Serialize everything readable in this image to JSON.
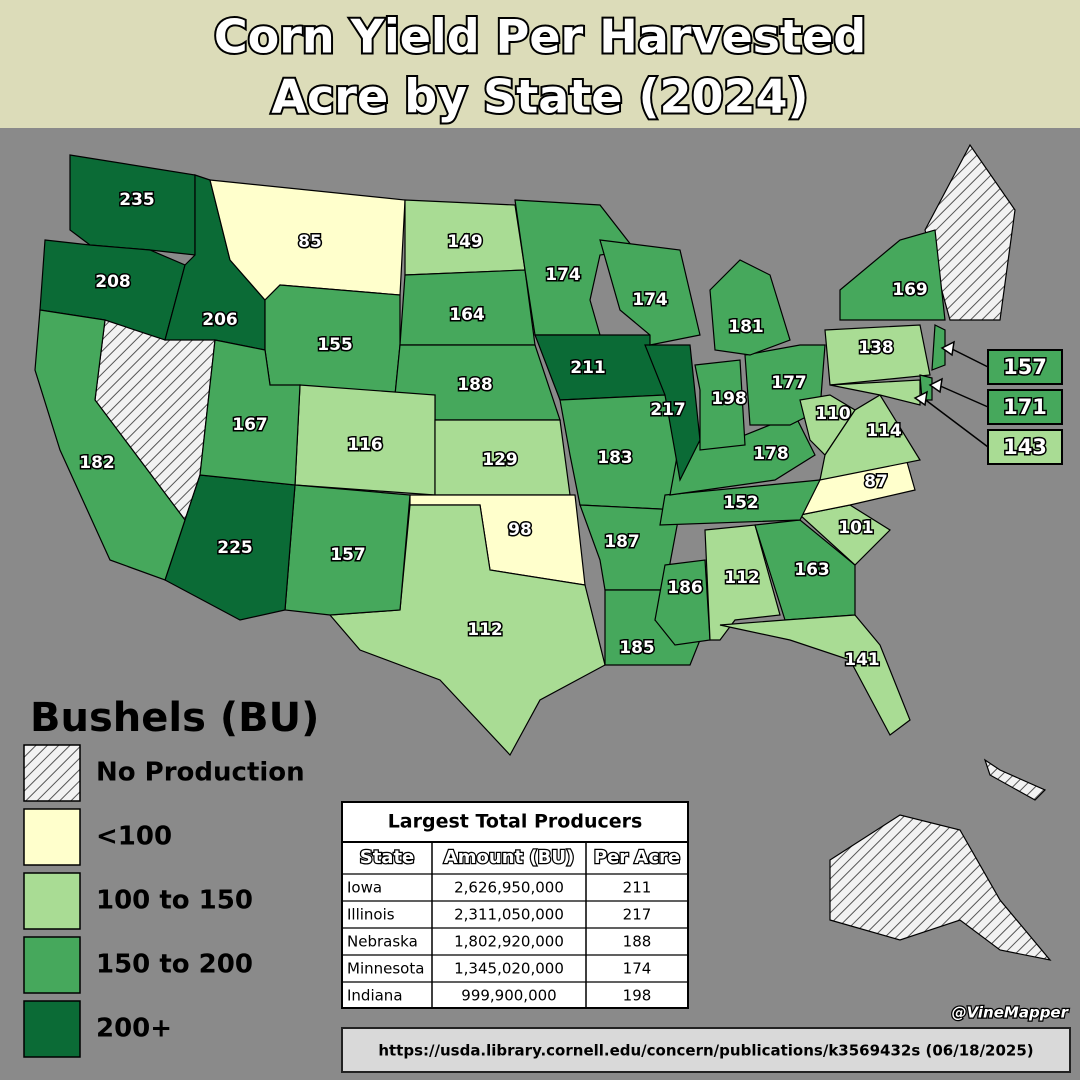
{
  "title": [
    "Corn Yield Per Harvested",
    "Acre by State (2024)"
  ],
  "states": [
    {
      "value": 235,
      "color": "#0b6b36"
    },
    {
      "value": 208,
      "color": "#0b6b36"
    },
    {
      "value": 206,
      "color": "#0b6b36"
    },
    {
      "value": 85,
      "color": "#ffffcc"
    },
    {
      "value": 155,
      "color": "#46a85c"
    },
    {
      "value": 149,
      "color": "#a9dc94"
    },
    {
      "value": 164,
      "color": "#46a85c"
    },
    {
      "value": 188,
      "color": "#46a85c"
    },
    {
      "value": 116,
      "color": "#a9dc94"
    },
    {
      "value": 129,
      "color": "#a9dc94"
    },
    {
      "value": 98,
      "color": "#ffffcc"
    },
    {
      "value": 112,
      "color": "#a9dc94"
    },
    {
      "value": 157,
      "color": "#46a85c"
    },
    {
      "value": 225,
      "color": "#0b6b36"
    },
    {
      "value": 167,
      "color": "#46a85c"
    },
    {
      "value": 182,
      "color": "#46a85c"
    },
    {
      "value": 174,
      "color": "#46a85c"
    },
    {
      "value": 211,
      "color": "#0b6b36"
    },
    {
      "value": 183,
      "color": "#46a85c"
    },
    {
      "value": 187,
      "color": "#46a85c"
    },
    {
      "value": 185,
      "color": "#46a85c"
    },
    {
      "value": 186,
      "color": "#46a85c"
    },
    {
      "value": 112,
      "color": "#a9dc94"
    },
    {
      "value": 163,
      "color": "#46a85c"
    },
    {
      "value": 141,
      "color": "#a9dc94"
    },
    {
      "value": 101,
      "color": "#a9dc94"
    },
    {
      "value": 87,
      "color": "#ffffcc"
    },
    {
      "value": 152,
      "color": "#46a85c"
    },
    {
      "value": 178,
      "color": "#46a85c"
    },
    {
      "value": 217,
      "color": "#0b6b36"
    },
    {
      "value": 198,
      "color": "#46a85c"
    },
    {
      "value": 177,
      "color": "#46a85c"
    },
    {
      "value": 181,
      "color": "#46a85c"
    },
    {
      "value": 174,
      "color": "#46a85c"
    },
    {
      "value": 110,
      "color": "#a9dc94"
    },
    {
      "value": 114,
      "color": "#a9dc94"
    },
    {
      "value": 138,
      "color": "#a9dc94"
    },
    {
      "value": 169,
      "color": "#46a85c"
    },
    {
      "value": 157,
      "color": "#46a85c"
    },
    {
      "value": 171,
      "color": "#46a85c"
    },
    {
      "value": 143,
      "color": "#a9dc94"
    }
  ],
  "legend": {
    "title": "Bushels (BU)",
    "items": [
      {
        "label": "No Production",
        "pattern": "hatch"
      },
      {
        "label": "<100",
        "color": "#ffffcc"
      },
      {
        "label": "100 to 150",
        "color": "#a9dc94"
      },
      {
        "label": "150 to 200",
        "color": "#46a85c"
      },
      {
        "label": "200+",
        "color": "#0b6b36"
      }
    ]
  },
  "table": {
    "title": "Largest Total Producers",
    "columns": [
      "State",
      "Amount (BU)",
      "Per Acre"
    ],
    "rows": [
      [
        "Iowa",
        "2,626,950,000",
        "211"
      ],
      [
        "Illinois",
        "2,311,050,000",
        "217"
      ],
      [
        "Nebraska",
        "1,802,920,000",
        "188"
      ],
      [
        "Minnesota",
        "1,345,020,000",
        "174"
      ],
      [
        "Indiana",
        "999,900,000",
        "198"
      ]
    ]
  },
  "credit": "@VineMapper",
  "source": "https://usda.library.cornell.edu/concern/publications/k3569432s (06/18/2025)"
}
